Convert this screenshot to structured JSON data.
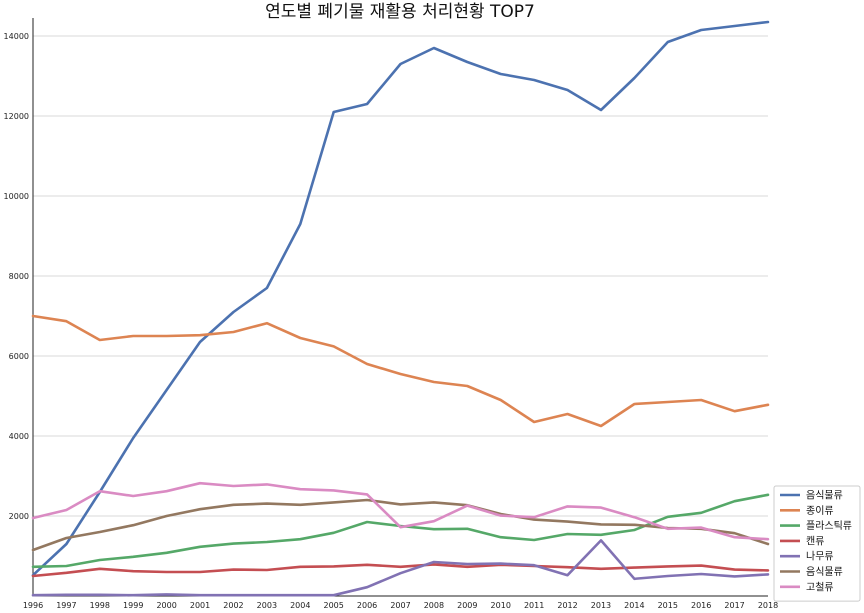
{
  "chart_data": {
    "type": "line",
    "title": "연도별 폐기물 재활용 처리현황 TOP7",
    "xlabel": "",
    "ylabel": "",
    "x": [
      1996,
      1997,
      1998,
      1999,
      2000,
      2001,
      2002,
      2003,
      2004,
      2005,
      2006,
      2007,
      2008,
      2009,
      2010,
      2011,
      2012,
      2013,
      2014,
      2015,
      2016,
      2017,
      2018
    ],
    "xlim": [
      1996,
      2018
    ],
    "ylim": [
      0,
      14400
    ],
    "yticks": [
      2000,
      4000,
      6000,
      8000,
      10000,
      12000,
      14000
    ],
    "grid": "horizontal",
    "legend_position": "bottom-right",
    "series": [
      {
        "name": "음식물류",
        "color": "#4c72b0",
        "values": [
          520,
          1300,
          2600,
          3950,
          5150,
          6350,
          7100,
          7700,
          9300,
          12100,
          12300,
          13300,
          13700,
          13350,
          13050,
          12900,
          12650,
          12150,
          12950,
          13850,
          14150,
          14250,
          14350
        ]
      },
      {
        "name": "종이류",
        "color": "#dd8452",
        "values": [
          7000,
          6870,
          6400,
          6500,
          6500,
          6520,
          6600,
          6820,
          6450,
          6240,
          5800,
          5550,
          5350,
          5250,
          4900,
          4350,
          4550,
          4250,
          4800,
          4850,
          4900,
          4620,
          4780
        ]
      },
      {
        "name": "플라스틱류",
        "color": "#55a868",
        "values": [
          730,
          750,
          900,
          980,
          1080,
          1230,
          1310,
          1350,
          1420,
          1580,
          1850,
          1750,
          1670,
          1680,
          1470,
          1400,
          1550,
          1530,
          1650,
          1980,
          2080,
          2370,
          2530
        ]
      },
      {
        "name": "캔류",
        "color": "#c44e52",
        "values": [
          500,
          580,
          680,
          620,
          600,
          600,
          660,
          650,
          730,
          740,
          780,
          730,
          790,
          730,
          780,
          750,
          720,
          680,
          710,
          740,
          760,
          660,
          640
        ]
      },
      {
        "name": "나무류",
        "color": "#8172b3",
        "values": [
          20,
          30,
          30,
          20,
          40,
          20,
          20,
          20,
          20,
          20,
          220,
          570,
          850,
          800,
          810,
          770,
          520,
          1390,
          430,
          500,
          550,
          490,
          540
        ]
      },
      {
        "name": "음식물류",
        "color": "#937860",
        "values": [
          1150,
          1450,
          1600,
          1770,
          2000,
          2170,
          2280,
          2310,
          2280,
          2340,
          2400,
          2290,
          2340,
          2270,
          2050,
          1910,
          1860,
          1790,
          1780,
          1700,
          1680,
          1570,
          1300
        ]
      },
      {
        "name": "고철류",
        "color": "#da8bc3",
        "values": [
          1950,
          2150,
          2620,
          2500,
          2620,
          2820,
          2750,
          2790,
          2670,
          2640,
          2540,
          1720,
          1870,
          2260,
          2010,
          1970,
          2240,
          2210,
          1970,
          1680,
          1710,
          1470,
          1420
        ]
      }
    ]
  }
}
